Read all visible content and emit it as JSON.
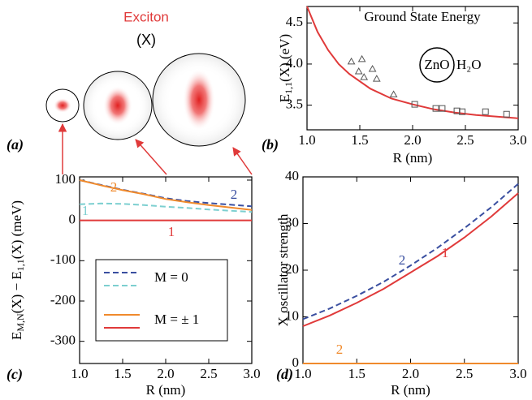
{
  "illustration": {
    "title": "Exciton",
    "symbol": "(X)",
    "panel_label": "(a)"
  },
  "chart_data": [
    {
      "type": "line",
      "panel_label": "(b)",
      "title": "Ground State Energy",
      "annotations": [
        "ZnO",
        "H₂O"
      ],
      "xlabel": "R (nm)",
      "ylabel": [
        "E",
        "1,1",
        "(X) (eV)"
      ],
      "xlim": [
        1,
        3
      ],
      "ylim": [
        3.2,
        4.7
      ],
      "xticks": [
        {
          "value": 1,
          "label": "1.0"
        },
        1.5,
        {
          "value": 2,
          "label": "2.0"
        },
        2.5,
        {
          "value": 3,
          "label": "3.0"
        }
      ],
      "yticks": [
        3.5,
        {
          "value": 4,
          "label": "4.0"
        },
        4.5
      ],
      "series": [
        {
          "style": "line",
          "color": "#e03a3a",
          "x": [
            1.0,
            1.1,
            1.2,
            1.3,
            1.4,
            1.6,
            1.8,
            2.0,
            2.2,
            2.4,
            2.6,
            2.8,
            3.0
          ],
          "values": [
            4.7,
            4.39,
            4.17,
            4.0,
            3.88,
            3.7,
            3.58,
            3.51,
            3.45,
            3.41,
            3.38,
            3.36,
            3.34
          ]
        },
        {
          "style": "triangle",
          "color": "#555555",
          "x": [
            1.42,
            1.49,
            1.52,
            1.54,
            1.62,
            1.66,
            1.82
          ],
          "values": [
            4.03,
            3.91,
            4.06,
            3.84,
            3.94,
            3.82,
            3.63
          ]
        },
        {
          "style": "square",
          "color": "#555555",
          "x": [
            2.02,
            2.22,
            2.28,
            2.42,
            2.47,
            2.69,
            2.89
          ],
          "values": [
            3.51,
            3.46,
            3.46,
            3.43,
            3.42,
            3.42,
            3.39
          ]
        }
      ]
    },
    {
      "type": "line",
      "panel_label": "(c)",
      "xlabel": "R (nm)",
      "ylabel": [
        "E",
        "M,N",
        "(X) − E",
        "1,1",
        "(X) (meV)"
      ],
      "xlim": [
        1,
        3
      ],
      "ylim": [
        -355,
        108
      ],
      "xticks": [
        {
          "value": 1,
          "label": "1.0"
        },
        1.5,
        {
          "value": 2,
          "label": "2.0"
        },
        2.5,
        {
          "value": 3,
          "label": "3.0"
        }
      ],
      "yticks": [
        -300,
        -200,
        -100,
        0,
        100
      ],
      "legend": [
        "M = 0",
        "M = ± 1"
      ],
      "series": [
        {
          "name": "2",
          "style": "dashed",
          "color": "#3a4fa0",
          "x": [
            1,
            1.25,
            1.5,
            1.75,
            2,
            2.25,
            2.5,
            2.75,
            3
          ],
          "values": [
            100,
            88,
            76,
            66,
            55,
            48,
            43,
            39,
            35
          ]
        },
        {
          "name": "1",
          "style": "dashed",
          "color": "#7ccfd0",
          "x": [
            1,
            1.25,
            1.5,
            1.75,
            2,
            2.25,
            2.5,
            2.75,
            3
          ],
          "values": [
            40,
            42,
            41,
            38,
            34,
            31,
            27,
            24,
            21
          ]
        },
        {
          "name": "2",
          "style": "line",
          "color": "#f08a2c",
          "x": [
            1,
            1.25,
            1.5,
            1.75,
            2,
            2.25,
            2.5,
            2.75,
            3
          ],
          "values": [
            100,
            87,
            75,
            65,
            53,
            45,
            38,
            32,
            26
          ]
        },
        {
          "name": "1",
          "style": "line",
          "color": "#e03a3a",
          "x": [
            1,
            1.25,
            1.5,
            1.75,
            2,
            2.25,
            2.5,
            2.75,
            3
          ],
          "values": [
            0,
            0,
            0,
            0,
            0,
            0,
            0,
            0,
            0
          ]
        }
      ]
    },
    {
      "type": "line",
      "panel_label": "(d)",
      "xlabel": "R (nm)",
      "ylabel": "X oscillator strength",
      "xlim": [
        1,
        3
      ],
      "ylim": [
        0,
        40
      ],
      "xticks": [
        {
          "value": 1,
          "label": "1.0"
        },
        1.5,
        {
          "value": 2,
          "label": "2.0"
        },
        2.5,
        {
          "value": 3,
          "label": "3.0"
        }
      ],
      "yticks": [
        0,
        10,
        20,
        30,
        40
      ],
      "series": [
        {
          "name": "2",
          "style": "dashed",
          "color": "#3a4fa0",
          "x": [
            1,
            1.25,
            1.5,
            1.75,
            2,
            2.25,
            2.5,
            2.75,
            3
          ],
          "values": [
            9.5,
            11.8,
            14.5,
            17.5,
            21,
            24.8,
            29,
            33.5,
            38.5
          ]
        },
        {
          "name": "1",
          "style": "line",
          "color": "#e03a3a",
          "x": [
            1,
            1.25,
            1.5,
            1.75,
            2,
            2.25,
            2.5,
            2.75,
            3
          ],
          "values": [
            8,
            10.3,
            13,
            16,
            19.5,
            23,
            27,
            31.5,
            36.5
          ]
        },
        {
          "name": "2",
          "style": "line",
          "color": "#f08a2c",
          "x": [
            1,
            1.25,
            1.5,
            1.75,
            2,
            2.25,
            2.5,
            2.75,
            3
          ],
          "values": [
            0,
            0,
            0,
            0,
            0,
            0,
            0,
            0,
            0
          ]
        }
      ]
    }
  ]
}
